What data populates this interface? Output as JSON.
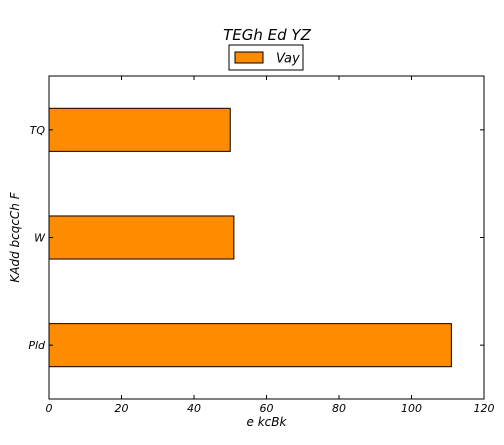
{
  "chart_data": {
    "type": "bar",
    "orientation": "horizontal",
    "title": "TEGh Ed  YZ",
    "xlabel": "e kcBk",
    "ylabel": "KAdd bcqcCh F",
    "categories": [
      "Pld",
      "W",
      "TQ"
    ],
    "series": [
      {
        "name": "Vay",
        "values": [
          111,
          51,
          50
        ],
        "color": "#ff8c00"
      }
    ],
    "xlim": [
      0,
      120
    ],
    "xticks": [
      0,
      20,
      40,
      60,
      80,
      100,
      120
    ],
    "grid": false,
    "legend_position": "top-center"
  }
}
